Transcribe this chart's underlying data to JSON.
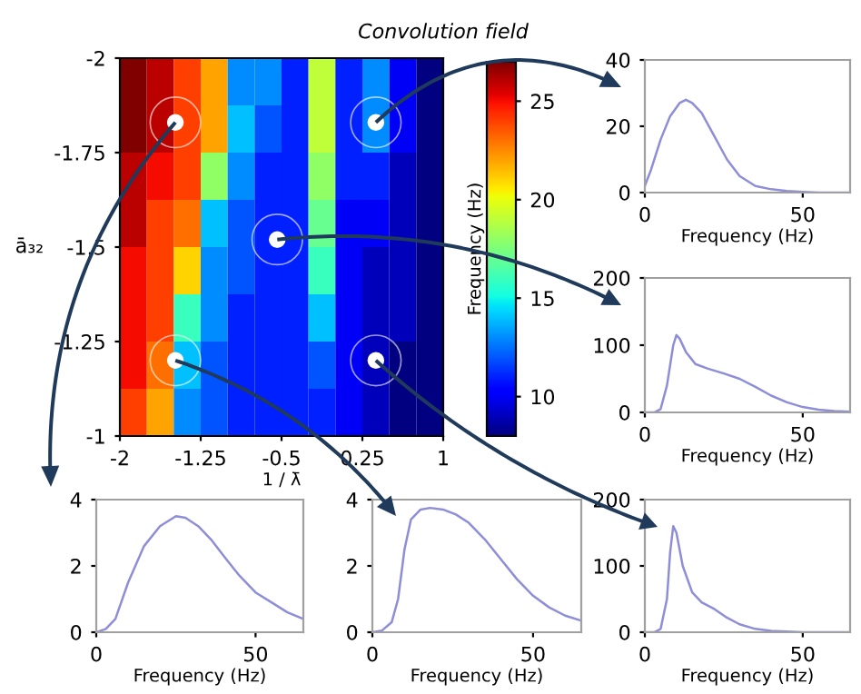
{
  "chart_data": [
    {
      "type": "heatmap",
      "title": "Convolution field",
      "xlabel": "1 / λ̄",
      "ylabel": "ā₃₂",
      "clabel": "Frequency (Hz)",
      "xlim": [
        -2,
        1
      ],
      "xticks": [
        -2,
        -1.25,
        -0.5,
        0.25,
        1
      ],
      "ylim": [
        -1,
        -2
      ],
      "yticks": [
        -2,
        -1.75,
        -1.5,
        -1.25,
        -1
      ],
      "clim": [
        8,
        27
      ],
      "cticks": [
        10,
        15,
        20,
        25
      ],
      "cells": [
        [
          27,
          26,
          24,
          22,
          13,
          13,
          11,
          19,
          11,
          13,
          10,
          8
        ],
        [
          27,
          26,
          24,
          22,
          14,
          12,
          11,
          19,
          11,
          13,
          10,
          8
        ],
        [
          26,
          25,
          24,
          18,
          13,
          11,
          11,
          18,
          11,
          11,
          9,
          8
        ],
        [
          26,
          24,
          23,
          14,
          12,
          11,
          11,
          17,
          10,
          10,
          9,
          8
        ],
        [
          25,
          24,
          21,
          13,
          12,
          11,
          11,
          16,
          10,
          9,
          9,
          8
        ],
        [
          25,
          24,
          16,
          13,
          11,
          11,
          11,
          14,
          10,
          9,
          9,
          8
        ],
        [
          25,
          23,
          14,
          12,
          11,
          11,
          11,
          12,
          10,
          9,
          8,
          8
        ],
        [
          24,
          22,
          13,
          12,
          11,
          11,
          11,
          11,
          10,
          9,
          8,
          8
        ]
      ],
      "series": [
        {
          "type": "scatter",
          "color": "#ffffff",
          "marker": "circle",
          "x": [
            0.375,
            -0.54,
            -1.485,
            -1.485,
            0.375
          ],
          "values": [
            -1.83,
            -1.52,
            -1.83,
            -1.2,
            -1.2
          ]
        }
      ]
    },
    {
      "type": "line",
      "xlabel": "Frequency (Hz)",
      "xlim": [
        0,
        65
      ],
      "xticks": [
        0,
        50
      ],
      "ylim": [
        0,
        40
      ],
      "yticks": [
        0,
        20,
        40
      ],
      "series": [
        {
          "color": "#8e8ed8",
          "x": [
            0,
            2,
            5,
            8,
            11,
            13,
            15,
            18,
            22,
            26,
            30,
            35,
            40,
            45,
            50,
            55,
            60,
            65
          ],
          "values": [
            2,
            7,
            16,
            23,
            27,
            28,
            27,
            24,
            17,
            10,
            5,
            2,
            1,
            0.5,
            0.2,
            0,
            0,
            0
          ]
        }
      ]
    },
    {
      "type": "line",
      "xlabel": "Frequency (Hz)",
      "xlim": [
        0,
        65
      ],
      "xticks": [
        0,
        50
      ],
      "ylim": [
        0,
        200
      ],
      "yticks": [
        0,
        100,
        200
      ],
      "series": [
        {
          "color": "#8e8ed8",
          "x": [
            0,
            3,
            5,
            7,
            9,
            10,
            11,
            13,
            16,
            20,
            25,
            30,
            35,
            40,
            45,
            50,
            55,
            60,
            65
          ],
          "values": [
            0,
            0,
            5,
            40,
            100,
            115,
            110,
            90,
            72,
            65,
            58,
            50,
            38,
            25,
            15,
            8,
            4,
            2,
            1
          ]
        }
      ]
    },
    {
      "type": "line",
      "xlabel": "Frequency (Hz)",
      "xlim": [
        0,
        65
      ],
      "xticks": [
        0,
        50
      ],
      "ylim": [
        0,
        4
      ],
      "yticks": [
        0,
        2,
        4
      ],
      "series": [
        {
          "color": "#8e8ed8",
          "x": [
            0,
            3,
            6,
            10,
            15,
            20,
            25,
            28,
            32,
            36,
            40,
            45,
            50,
            55,
            60,
            65
          ],
          "values": [
            0,
            0.1,
            0.4,
            1.5,
            2.6,
            3.2,
            3.5,
            3.45,
            3.2,
            2.8,
            2.3,
            1.7,
            1.2,
            0.9,
            0.6,
            0.4
          ]
        }
      ]
    },
    {
      "type": "line",
      "xlabel": "Frequency (Hz)",
      "xlim": [
        0,
        65
      ],
      "xticks": [
        0,
        50
      ],
      "ylim": [
        0,
        4
      ],
      "yticks": [
        0,
        2,
        4
      ],
      "series": [
        {
          "color": "#8e8ed8",
          "x": [
            0,
            3,
            6,
            8,
            10,
            12,
            15,
            18,
            22,
            26,
            30,
            35,
            40,
            45,
            50,
            55,
            60,
            65
          ],
          "values": [
            0,
            0.05,
            0.3,
            1.0,
            2.5,
            3.4,
            3.7,
            3.75,
            3.7,
            3.55,
            3.3,
            2.8,
            2.2,
            1.6,
            1.1,
            0.75,
            0.5,
            0.35
          ]
        }
      ]
    },
    {
      "type": "line",
      "xlabel": "Frequency (Hz)",
      "xlim": [
        0,
        65
      ],
      "xticks": [
        0,
        50
      ],
      "ylim": [
        0,
        200
      ],
      "yticks": [
        0,
        100,
        200
      ],
      "series": [
        {
          "color": "#8e8ed8",
          "x": [
            0,
            3,
            5,
            7,
            8,
            9,
            10,
            12,
            15,
            18,
            22,
            26,
            30,
            35,
            40,
            50,
            60,
            65
          ],
          "values": [
            0,
            0,
            5,
            50,
            120,
            160,
            150,
            100,
            60,
            45,
            35,
            22,
            12,
            5,
            2,
            0,
            0,
            0
          ]
        }
      ]
    }
  ]
}
